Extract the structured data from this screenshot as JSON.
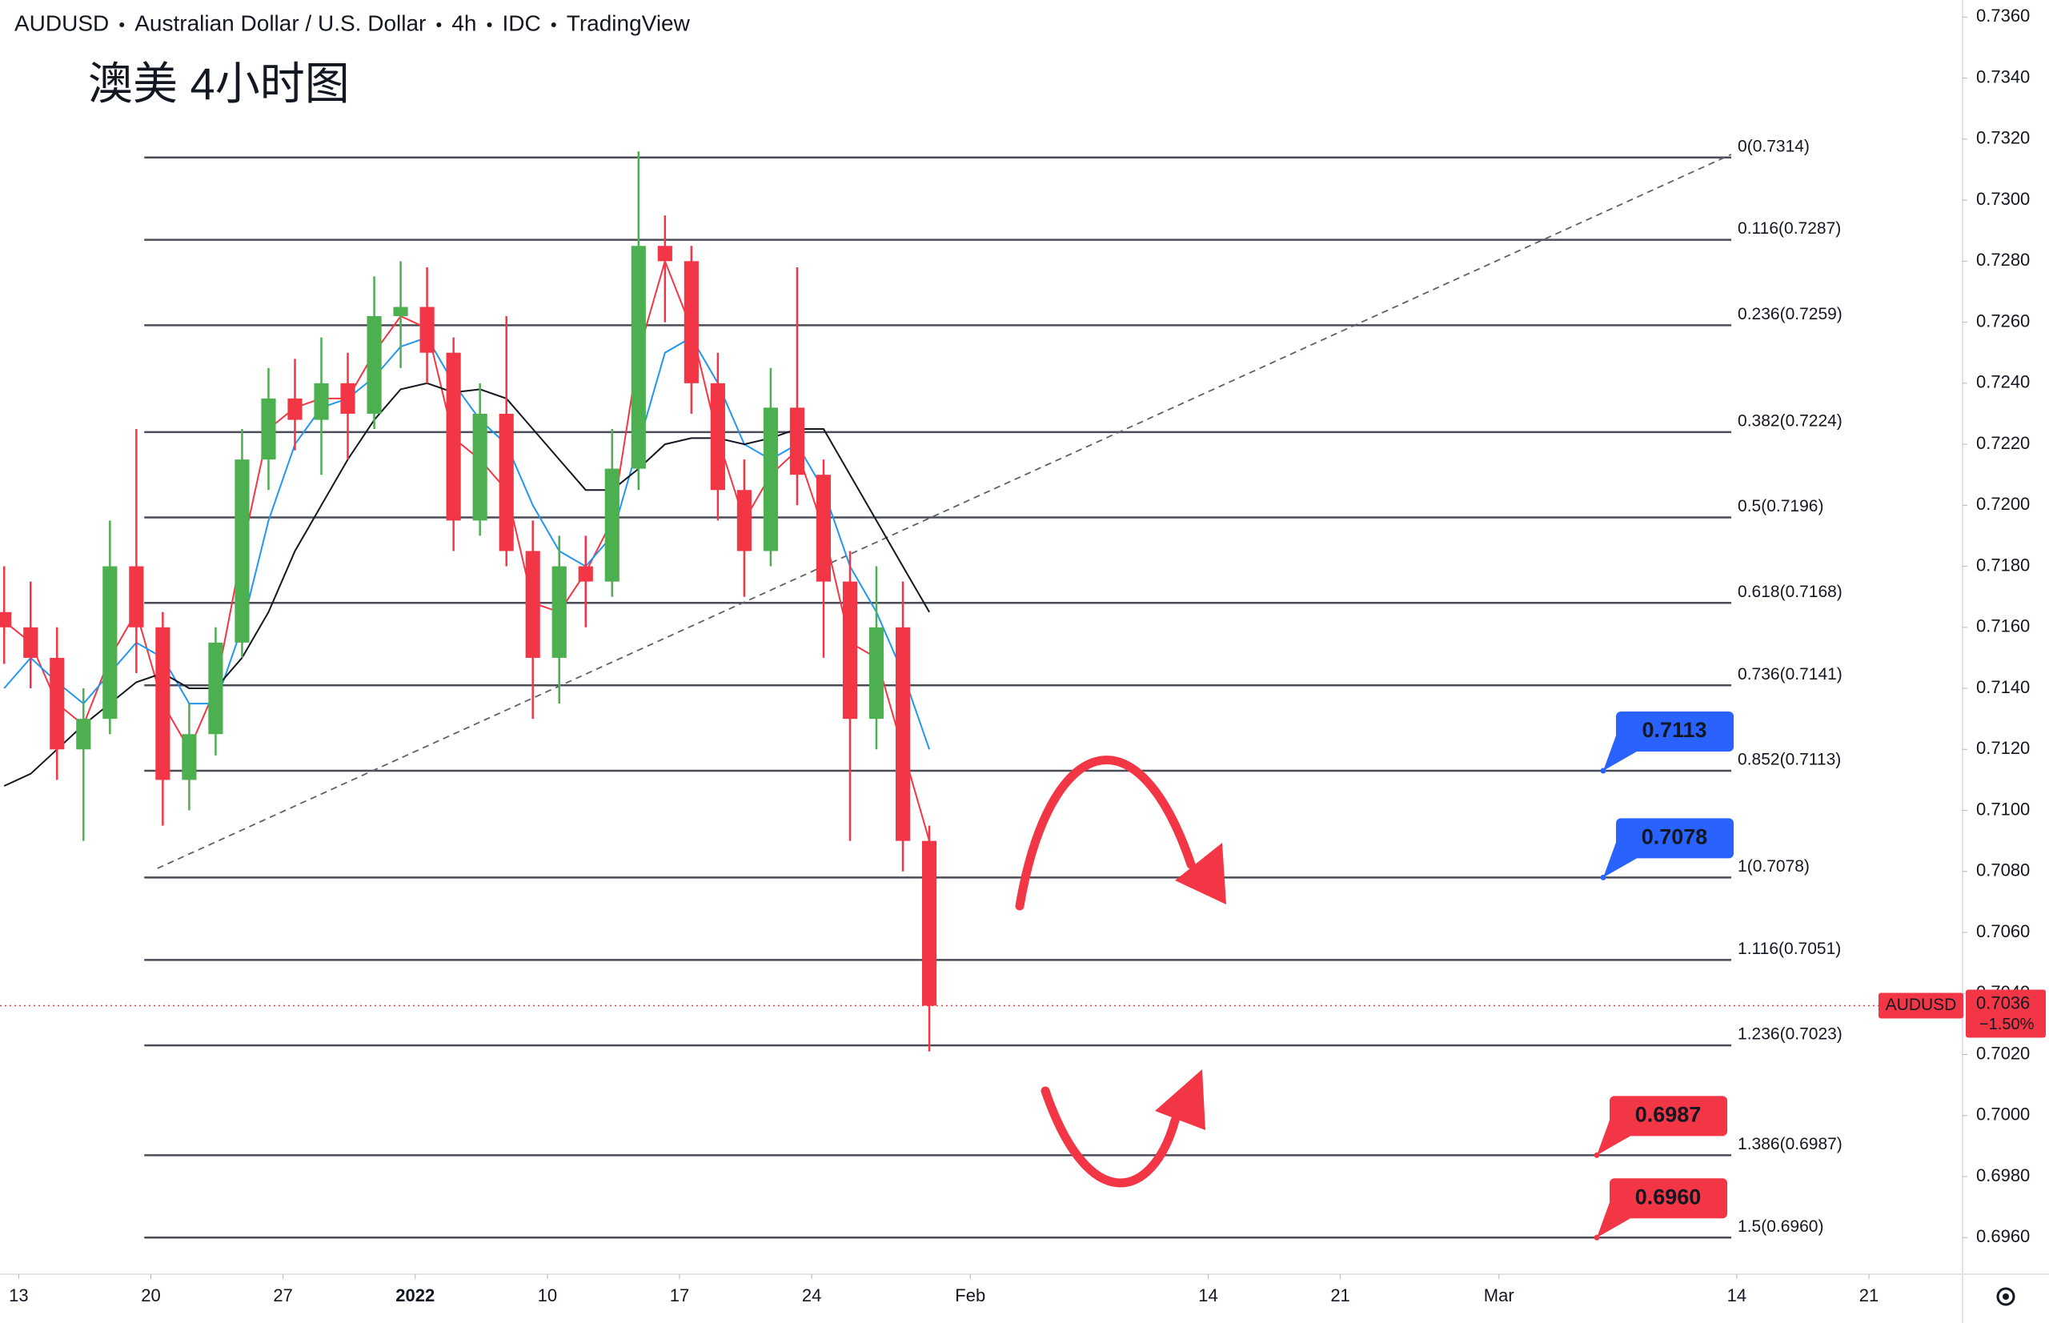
{
  "chart_data": {
    "type": "candlestick",
    "header": [
      "AUDUSD",
      "Australian Dollar / U.S. Dollar",
      "4h",
      "IDC",
      "TradingView"
    ],
    "annotation": "澳美 4小时图",
    "x": [
      "2021-12-10",
      "2021-12-13",
      "2021-12-14",
      "2021-12-15",
      "2021-12-16",
      "2021-12-17",
      "2021-12-20",
      "2021-12-21",
      "2021-12-22",
      "2021-12-23",
      "2021-12-24",
      "2021-12-27",
      "2021-12-28",
      "2021-12-29",
      "2021-12-30",
      "2021-12-31",
      "2022-01-03",
      "2022-01-04",
      "2022-01-05",
      "2022-01-06",
      "2022-01-07",
      "2022-01-10",
      "2022-01-11",
      "2022-01-12",
      "2022-01-13",
      "2022-01-14",
      "2022-01-17",
      "2022-01-18",
      "2022-01-19",
      "2022-01-20",
      "2022-01-21",
      "2022-01-24",
      "2022-01-25",
      "2022-01-26",
      "2022-01-27",
      "2022-01-28"
    ],
    "open": [
      0.7165,
      0.716,
      0.715,
      0.712,
      0.713,
      0.718,
      0.716,
      0.711,
      0.7125,
      0.7155,
      0.7215,
      0.7235,
      0.7228,
      0.724,
      0.723,
      0.7262,
      0.7265,
      0.725,
      0.7195,
      0.723,
      0.7185,
      0.715,
      0.718,
      0.7175,
      0.7212,
      0.7285,
      0.728,
      0.724,
      0.7205,
      0.7185,
      0.7232,
      0.721,
      0.7175,
      0.713,
      0.716,
      0.709
    ],
    "high": [
      0.718,
      0.7175,
      0.716,
      0.714,
      0.7195,
      0.7225,
      0.7165,
      0.7135,
      0.716,
      0.7225,
      0.7245,
      0.7248,
      0.7255,
      0.725,
      0.7275,
      0.728,
      0.7278,
      0.7255,
      0.724,
      0.7262,
      0.7195,
      0.719,
      0.719,
      0.7225,
      0.7316,
      0.7295,
      0.7285,
      0.725,
      0.7215,
      0.7245,
      0.7278,
      0.7215,
      0.7185,
      0.718,
      0.7175,
      0.7095
    ],
    "low": [
      0.7148,
      0.714,
      0.711,
      0.709,
      0.7125,
      0.7145,
      0.7095,
      0.71,
      0.7118,
      0.715,
      0.7205,
      0.7218,
      0.721,
      0.7215,
      0.7225,
      0.7245,
      0.724,
      0.7185,
      0.719,
      0.718,
      0.713,
      0.7135,
      0.716,
      0.717,
      0.7205,
      0.726,
      0.723,
      0.7195,
      0.717,
      0.718,
      0.72,
      0.715,
      0.709,
      0.712,
      0.708,
      0.7021
    ],
    "close": [
      0.716,
      0.715,
      0.712,
      0.713,
      0.718,
      0.716,
      0.711,
      0.7125,
      0.7155,
      0.7215,
      0.7235,
      0.7228,
      0.724,
      0.723,
      0.7262,
      0.7265,
      0.725,
      0.7195,
      0.723,
      0.7185,
      0.715,
      0.718,
      0.7175,
      0.7212,
      0.7285,
      0.728,
      0.724,
      0.7205,
      0.7185,
      0.7232,
      0.721,
      0.7175,
      0.713,
      0.716,
      0.709,
      0.7036
    ],
    "up_color": "#4caf50",
    "down_color": "#f23645",
    "lines": [
      {
        "color": "#f23645",
        "values": [
          0.7162,
          0.7155,
          0.7135,
          0.7128,
          0.715,
          0.7165,
          0.7135,
          0.712,
          0.714,
          0.7185,
          0.7225,
          0.7232,
          0.7235,
          0.7235,
          0.725,
          0.7262,
          0.7258,
          0.7222,
          0.7215,
          0.7205,
          0.7168,
          0.7165,
          0.7178,
          0.7195,
          0.725,
          0.728,
          0.7258,
          0.7222,
          0.7195,
          0.721,
          0.7218,
          0.7192,
          0.7155,
          0.715,
          0.712,
          0.709
        ]
      },
      {
        "color": "#2196f3",
        "values": [
          0.714,
          0.715,
          0.7142,
          0.7135,
          0.7145,
          0.7155,
          0.715,
          0.7135,
          0.7135,
          0.716,
          0.7195,
          0.722,
          0.7232,
          0.7235,
          0.7242,
          0.7252,
          0.7255,
          0.724,
          0.7228,
          0.722,
          0.72,
          0.7185,
          0.718,
          0.719,
          0.722,
          0.725,
          0.7255,
          0.724,
          0.722,
          0.7215,
          0.722,
          0.7205,
          0.718,
          0.7165,
          0.7145,
          0.712
        ]
      },
      {
        "color": "#131722",
        "values": [
          0.7108,
          0.7112,
          0.712,
          0.7128,
          0.7135,
          0.7142,
          0.7145,
          0.714,
          0.714,
          0.715,
          0.7165,
          0.7185,
          0.72,
          0.7215,
          0.7228,
          0.7238,
          0.724,
          0.7237,
          0.7238,
          0.7235,
          0.7225,
          0.7215,
          0.7205,
          0.7205,
          0.7212,
          0.722,
          0.7222,
          0.7222,
          0.722,
          0.7222,
          0.7225,
          0.7225,
          0.721,
          0.7195,
          0.718,
          0.7165
        ]
      }
    ],
    "xlim": [
      "2021-12-10T07:00",
      "2022-03-24T13:00"
    ],
    "xticks": [
      {
        "value": "2021-12-13",
        "label": "13"
      },
      {
        "value": "2021-12-20",
        "label": "20"
      },
      {
        "value": "2021-12-27",
        "label": "27"
      },
      {
        "value": "2022-01-03",
        "label": "2022"
      },
      {
        "value": "2022-01-10",
        "label": "10"
      },
      {
        "value": "2022-01-17",
        "label": "17"
      },
      {
        "value": "2022-01-24",
        "label": "24"
      },
      {
        "value": "2022-02-01",
        "label": "Feb"
      },
      {
        "value": "2022-02-14",
        "label": "14"
      },
      {
        "value": "2022-02-21",
        "label": "21"
      },
      {
        "value": "2022-03-01",
        "label": "Mar"
      },
      {
        "value": "2022-03-14",
        "label": "14"
      },
      {
        "value": "2022-03-21",
        "label": "21"
      }
    ],
    "ylim": [
      0.6948,
      0.73656
    ],
    "yticks": [
      {
        "value": 0.696,
        "label": "0.6960"
      },
      {
        "value": 0.698,
        "label": "0.6980"
      },
      {
        "value": 0.7,
        "label": "0.7000"
      },
      {
        "value": 0.702,
        "label": "0.7020"
      },
      {
        "value": 0.704,
        "label": "0.7040"
      },
      {
        "value": 0.706,
        "label": "0.7060"
      },
      {
        "value": 0.708,
        "label": "0.7080"
      },
      {
        "value": 0.71,
        "label": "0.7100"
      },
      {
        "value": 0.712,
        "label": "0.7120"
      },
      {
        "value": 0.714,
        "label": "0.7140"
      },
      {
        "value": 0.716,
        "label": "0.7160"
      },
      {
        "value": 0.718,
        "label": "0.7180"
      },
      {
        "value": 0.72,
        "label": "0.7200"
      },
      {
        "value": 0.722,
        "label": "0.7220"
      },
      {
        "value": 0.724,
        "label": "0.7240"
      },
      {
        "value": 0.726,
        "label": "0.7260"
      },
      {
        "value": 0.728,
        "label": "0.7280"
      },
      {
        "value": 0.73,
        "label": "0.7300"
      },
      {
        "value": 0.732,
        "label": "0.7320"
      },
      {
        "value": 0.734,
        "label": "0.7340"
      },
      {
        "value": 0.736,
        "label": "0.7360"
      }
    ],
    "trendline": {
      "x": [
        "2021-12-20T06:00",
        "2022-03-11T19:00"
      ],
      "values": [
        0.7081,
        0.7315
      ]
    },
    "fib": {
      "x": [
        "2021-12-17T18:00",
        "2022-03-11T19:00"
      ],
      "levels": [
        {
          "value": 0.7314,
          "label": "0(0.7314)"
        },
        {
          "value": 0.7287,
          "label": "0.116(0.7287)"
        },
        {
          "value": 0.7259,
          "label": "0.236(0.7259)"
        },
        {
          "value": 0.7224,
          "label": "0.382(0.7224)"
        },
        {
          "value": 0.7196,
          "label": "0.5(0.7196)"
        },
        {
          "value": 0.7168,
          "label": "0.618(0.7168)"
        },
        {
          "value": 0.7141,
          "label": "0.736(0.7141)"
        },
        {
          "value": 0.7113,
          "label": "0.852(0.7113)"
        },
        {
          "value": 0.7078,
          "label": "1(0.7078)"
        },
        {
          "value": 0.7051,
          "label": "1.116(0.7051)"
        },
        {
          "value": 0.7023,
          "label": "1.236(0.7023)"
        },
        {
          "value": 0.6987,
          "label": "1.386(0.6987)"
        },
        {
          "value": 0.696,
          "label": "1.5(0.6960)"
        }
      ]
    },
    "callouts": [
      {
        "value": 0.7113,
        "label": "0.7113",
        "color": "#2962ff"
      },
      {
        "value": 0.7078,
        "label": "0.7078",
        "color": "#2962ff"
      },
      {
        "value": 0.6987,
        "label": "0.6987",
        "color": "#f23645"
      },
      {
        "value": 0.696,
        "label": "0.6960",
        "color": "#f23645"
      }
    ],
    "last_price": {
      "symbol": "AUDUSD",
      "value": 0.7036,
      "change": "−1.50%",
      "color": "#f23645"
    }
  }
}
